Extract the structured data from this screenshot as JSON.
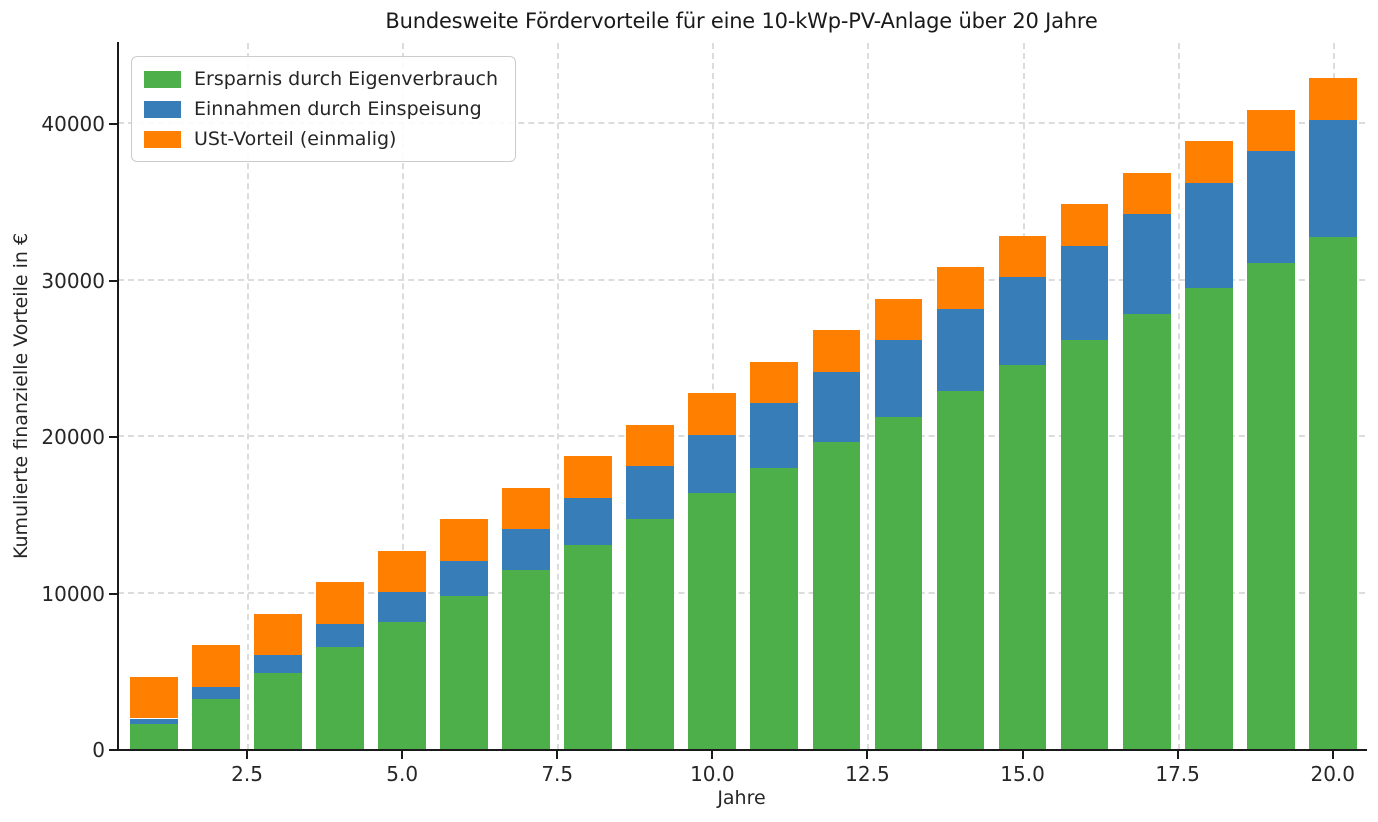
{
  "title": "Bundesweite Fördervorteile für eine 10-kWp-PV-Anlage über 20 Jahre",
  "axes": {
    "xlabel": "Jahre",
    "ylabel": "Kumulierte finanzielle Vorteile in €"
  },
  "colors": {
    "green": "#4daf4a",
    "blue": "#377eb8",
    "orange": "#ff7f00",
    "grid": "#dcdcdc",
    "spine": "#1a1a1a",
    "text": "#262626",
    "legend_border": "#cccccc",
    "background": "#ffffff"
  },
  "legend": {
    "items": [
      {
        "label": "Ersparnis durch Eigenverbrauch",
        "color": "#4daf4a"
      },
      {
        "label": "Einnahmen durch Einspeisung",
        "color": "#377eb8"
      },
      {
        "label": "USt-Vorteil (einmalig)",
        "color": "#ff7f00"
      }
    ]
  },
  "chart_data": {
    "type": "bar",
    "stacked": true,
    "title": "Bundesweite Fördervorteile für eine 10-kWp-PV-Anlage über 20 Jahre",
    "xlabel": "Jahre",
    "ylabel": "Kumulierte finanzielle Vorteile in €",
    "x": [
      1,
      2,
      3,
      4,
      5,
      6,
      7,
      8,
      9,
      10,
      11,
      12,
      13,
      14,
      15,
      16,
      17,
      18,
      19,
      20
    ],
    "series": [
      {
        "name": "Ersparnis durch Eigenverbrauch",
        "color": "#4daf4a",
        "values": [
          1640,
          3280,
          4920,
          6560,
          8200,
          9840,
          11480,
          13120,
          14760,
          16400,
          18040,
          19680,
          21320,
          22960,
          24600,
          26240,
          27880,
          29520,
          31160,
          32800
        ]
      },
      {
        "name": "Einnahmen durch Einspeisung",
        "color": "#377eb8",
        "values": [
          375,
          750,
          1125,
          1500,
          1875,
          2250,
          2625,
          3000,
          3375,
          3750,
          4125,
          4500,
          4875,
          5250,
          5625,
          6000,
          6375,
          6750,
          7125,
          7500
        ]
      },
      {
        "name": "USt-Vorteil (einmalig)",
        "color": "#ff7f00",
        "values": [
          2660,
          2660,
          2660,
          2660,
          2660,
          2660,
          2660,
          2660,
          2660,
          2660,
          2660,
          2660,
          2660,
          2660,
          2660,
          2660,
          2660,
          2660,
          2660,
          2660
        ]
      }
    ],
    "totals": [
      4675,
      6690,
      8705,
      10720,
      12735,
      14750,
      16765,
      18780,
      20795,
      22810,
      24825,
      26840,
      28855,
      30870,
      32885,
      34900,
      36915,
      38930,
      40945,
      42960
    ],
    "xticks": [
      {
        "value": 2.5,
        "label": "2.5"
      },
      {
        "value": 5.0,
        "label": "5.0"
      },
      {
        "value": 7.5,
        "label": "7.5"
      },
      {
        "value": 10.0,
        "label": "10.0"
      },
      {
        "value": 12.5,
        "label": "12.5"
      },
      {
        "value": 15.0,
        "label": "15.0"
      },
      {
        "value": 17.5,
        "label": "17.5"
      },
      {
        "value": 20.0,
        "label": "20.0"
      }
    ],
    "yticks": [
      {
        "value": 0,
        "label": "0"
      },
      {
        "value": 10000,
        "label": "10000"
      },
      {
        "value": 20000,
        "label": "20000"
      },
      {
        "value": 30000,
        "label": "30000"
      },
      {
        "value": 40000,
        "label": "40000"
      }
    ],
    "xlim": [
      0.42,
      20.52
    ],
    "ylim": [
      0,
      45200
    ],
    "bar_width": 0.77,
    "grid": true,
    "grid_style": "dashed",
    "legend_position": "upper left"
  }
}
